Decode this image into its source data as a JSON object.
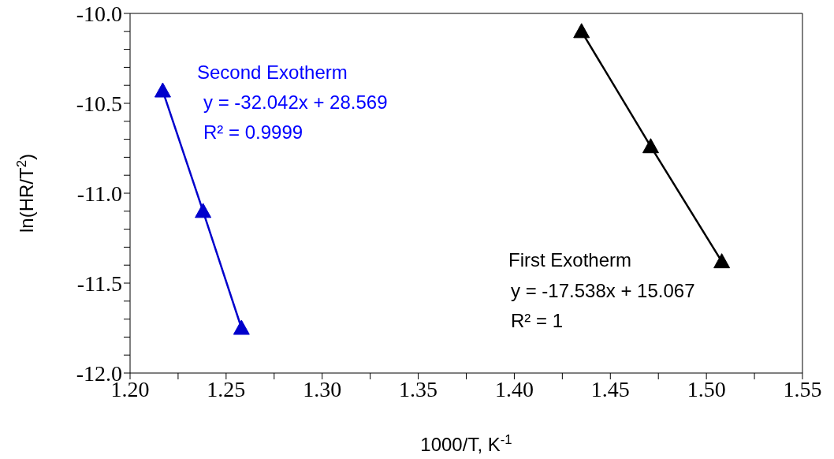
{
  "chart_data": {
    "type": "line",
    "xlabel": "1000/T, K$^{-1}$",
    "ylabel": "ln(HR/T$^{2}$)",
    "xlim": [
      1.2,
      1.55
    ],
    "ylim": [
      -12,
      -10
    ],
    "xticks": [
      {
        "value": 1.2,
        "label": "1.20"
      },
      {
        "value": 1.225,
        "label": null
      },
      1.25,
      {
        "value": 1.275,
        "label": null
      },
      {
        "value": 1.3,
        "label": "1.30"
      },
      {
        "value": 1.325,
        "label": null
      },
      1.35,
      {
        "value": 1.375,
        "label": null
      },
      {
        "value": 1.4,
        "label": "1.40"
      },
      {
        "value": 1.425,
        "label": null
      },
      1.45,
      {
        "value": 1.475,
        "label": null
      },
      {
        "value": 1.5,
        "label": "1.50"
      },
      {
        "value": 1.525,
        "label": null
      },
      1.55
    ],
    "yticks": [
      {
        "value": -12,
        "label": "-12.0"
      },
      {
        "value": -11.9,
        "label": null
      },
      {
        "value": -11.8,
        "label": null
      },
      {
        "value": -11.7,
        "label": null
      },
      {
        "value": -11.6,
        "label": null
      },
      -11.5,
      {
        "value": -11.4,
        "label": null
      },
      {
        "value": -11.3,
        "label": null
      },
      {
        "value": -11.2,
        "label": null
      },
      {
        "value": -11.1,
        "label": null
      },
      {
        "value": -11,
        "label": "-11.0"
      },
      {
        "value": -10.9,
        "label": null
      },
      {
        "value": -10.8,
        "label": null
      },
      {
        "value": -10.7,
        "label": null
      },
      {
        "value": -10.6,
        "label": null
      },
      -10.5,
      {
        "value": -10.4,
        "label": null
      },
      {
        "value": -10.3,
        "label": null
      },
      {
        "value": -10.2,
        "label": null
      },
      {
        "value": -10.1,
        "label": null
      },
      {
        "value": -10,
        "label": "-10.0"
      }
    ],
    "marker": "triangle",
    "line_style": "solid",
    "series": [
      {
        "name": "Second Exotherm",
        "color": "#0000cc",
        "x": [
          1.217,
          1.238,
          1.258
        ],
        "values": [
          -10.43,
          -11.1,
          -11.75
        ]
      },
      {
        "name": "First Exotherm",
        "color": "#000000",
        "x": [
          1.435,
          1.471,
          1.508
        ],
        "values": [
          -10.1,
          -10.74,
          -11.38
        ]
      }
    ],
    "annotations": [
      "y = -32.042x + 28.569",
      "R² = 0.9999",
      "y = -17.538x + 15.067",
      "R² = 1"
    ]
  }
}
